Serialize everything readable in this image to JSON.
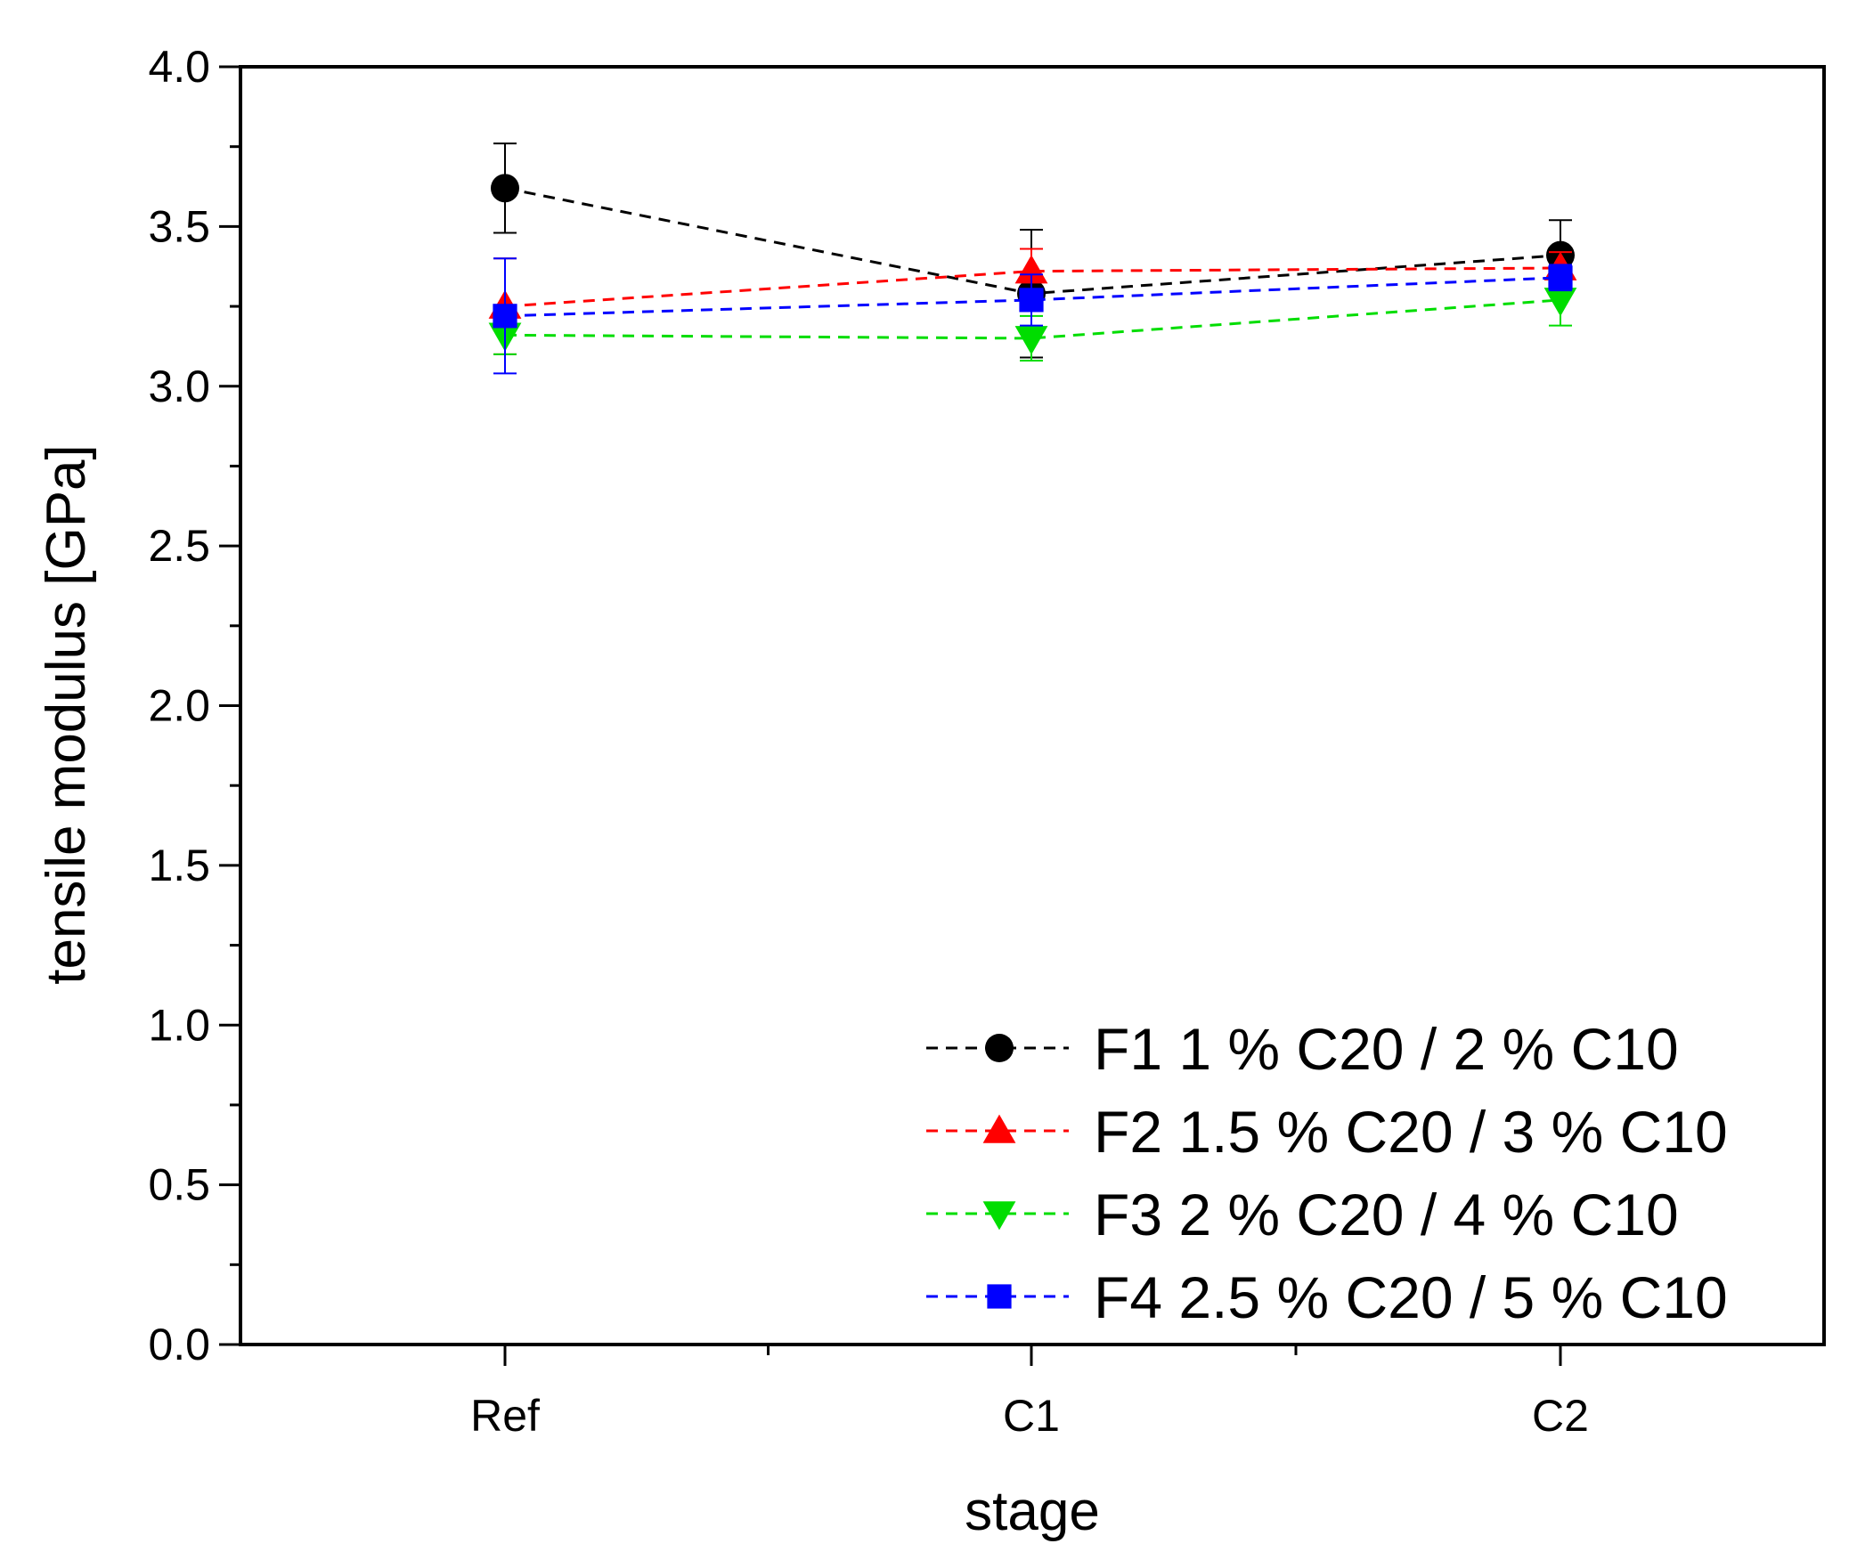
{
  "chart_data": {
    "type": "line",
    "title": "",
    "xlabel": "stage",
    "ylabel": "tensile modulus [GPa]",
    "categories": [
      "Ref",
      "C1",
      "C2"
    ],
    "ylim": [
      0,
      4
    ],
    "y_ticks": [
      "0.0",
      "0.5",
      "1.0",
      "1.5",
      "2.0",
      "2.5",
      "3.0",
      "3.5",
      "4.0"
    ],
    "legend_position": "bottom-right",
    "grid": false,
    "series": [
      {
        "name": "F1 1 % C20 / 2 % C10",
        "color": "#000000",
        "marker": "circle",
        "values": [
          3.62,
          3.29,
          3.41
        ],
        "errors": [
          0.14,
          0.2,
          0.11
        ]
      },
      {
        "name": "F2 1.5 % C20 / 3 % C10",
        "color": "#ff0000",
        "marker": "triangle-up",
        "values": [
          3.25,
          3.36,
          3.37
        ],
        "errors": [
          0.15,
          0.07,
          0.05
        ]
      },
      {
        "name": "F3 2 % C20 / 4 % C10",
        "color": "#00dd00",
        "marker": "triangle-down",
        "values": [
          3.16,
          3.15,
          3.27
        ],
        "errors": [
          0.06,
          0.07,
          0.08
        ]
      },
      {
        "name": "F4 2.5 % C20 / 5 % C10",
        "color": "#0000ff",
        "marker": "square",
        "values": [
          3.22,
          3.27,
          3.34
        ],
        "errors": [
          0.18,
          0.08,
          0.04
        ]
      }
    ]
  }
}
